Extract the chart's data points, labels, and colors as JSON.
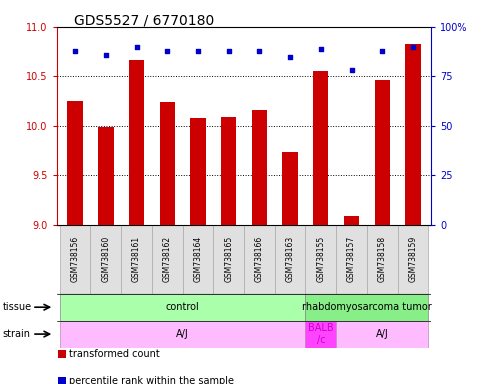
{
  "title": "GDS5527 / 6770180",
  "samples": [
    "GSM738156",
    "GSM738160",
    "GSM738161",
    "GSM738162",
    "GSM738164",
    "GSM738165",
    "GSM738166",
    "GSM738163",
    "GSM738155",
    "GSM738157",
    "GSM738158",
    "GSM738159"
  ],
  "transformed_count": [
    10.25,
    9.99,
    10.67,
    10.24,
    10.08,
    10.09,
    10.16,
    9.73,
    10.55,
    9.09,
    10.46,
    10.83
  ],
  "percentile_rank": [
    88,
    86,
    90,
    88,
    88,
    88,
    88,
    85,
    89,
    78,
    88,
    90
  ],
  "ylim_left": [
    9.0,
    11.0
  ],
  "ylim_right": [
    0,
    100
  ],
  "yticks_left": [
    9.0,
    9.5,
    10.0,
    10.5,
    11.0
  ],
  "yticks_right": [
    0,
    25,
    50,
    75,
    100
  ],
  "bar_color": "#cc0000",
  "dot_color": "#0000cc",
  "bar_width": 0.5,
  "tissue_groups": [
    {
      "label": "control",
      "start": 0,
      "end": 8,
      "color": "#aaffaa"
    },
    {
      "label": "rhabdomyosarcoma tumor",
      "start": 8,
      "end": 12,
      "color": "#88ee88"
    }
  ],
  "strain_groups": [
    {
      "label": "A/J",
      "start": 0,
      "end": 8,
      "color": "#ffbbff"
    },
    {
      "label": "BALB\n/c",
      "start": 8,
      "end": 9,
      "color": "#ff44ff"
    },
    {
      "label": "A/J",
      "start": 9,
      "end": 12,
      "color": "#ffbbff"
    }
  ],
  "legend_items": [
    {
      "label": "transformed count",
      "color": "#cc0000"
    },
    {
      "label": "percentile rank within the sample",
      "color": "#0000cc"
    }
  ],
  "left_axis_color": "#cc0000",
  "right_axis_color": "#0000cc",
  "background_color": "#ffffff",
  "title_fontsize": 10,
  "tick_fontsize": 7,
  "sample_fontsize": 5.5,
  "label_fontsize": 7,
  "group_fontsize": 7,
  "legend_fontsize": 7
}
